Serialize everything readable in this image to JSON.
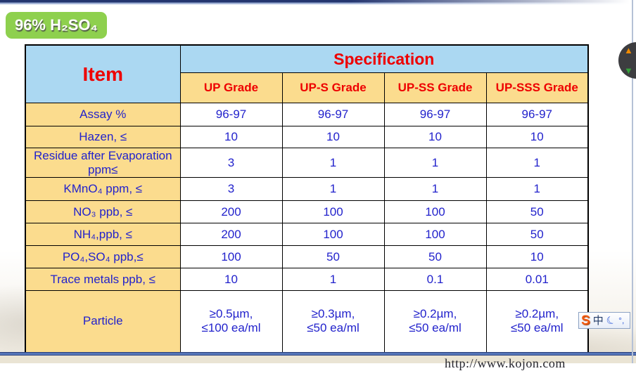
{
  "page": {
    "badge_label": "96% H₂SO₄",
    "footer_url": "http://www.kojon.com"
  },
  "colors": {
    "badge_green": "#8ed04e",
    "header_blue_bg": "#abd8f2",
    "label_yellow_bg": "#fbdc8e",
    "header_red_text": "#ee0000",
    "data_blue_text": "#2222cc",
    "bottom_rule_blue": "#5d80c5"
  },
  "icons": {
    "scroll_up": "▲",
    "scroll_down": "▼",
    "ime_logo": "S",
    "ime_mode": "中",
    "ime_moon": "☾",
    "ime_punct": "°,"
  },
  "table": {
    "item_header": "Item",
    "spec_header": "Specification",
    "grade_headers": [
      "UP Grade",
      "UP-S Grade",
      "UP-SS Grade",
      "UP-SSS Grade"
    ],
    "rows": [
      {
        "label": "Assay %",
        "values": [
          "96-97",
          "96-97",
          "96-97",
          "96-97"
        ]
      },
      {
        "label": "Hazen, ≤",
        "values": [
          "10",
          "10",
          "10",
          "10"
        ]
      },
      {
        "label": "Residue after Evaporation\nppm≤",
        "values": [
          "3",
          "1",
          "1",
          "1"
        ]
      },
      {
        "label": "KMnO₄ ppm, ≤",
        "values": [
          "3",
          "1",
          "1",
          "1"
        ]
      },
      {
        "label": "NO₃ ppb, ≤",
        "values": [
          "200",
          "100",
          "100",
          "50"
        ]
      },
      {
        "label": "NH₄,ppb, ≤",
        "values": [
          "200",
          "100",
          "100",
          "50"
        ]
      },
      {
        "label": "PO₄,SO₄ ppb,≤",
        "values": [
          "100",
          "50",
          "50",
          "10"
        ]
      },
      {
        "label": "Trace metals ppb, ≤",
        "values": [
          "10",
          "1",
          "0.1",
          "0.01"
        ]
      },
      {
        "label": "Particle",
        "values": [
          "≥0.5µm,\n≤100 ea/ml",
          "≥0.3µm,\n≤50 ea/ml",
          "≥0.2µm,\n≤50 ea/ml",
          "≥0.2µm,\n≤50 ea/ml"
        ]
      }
    ]
  }
}
